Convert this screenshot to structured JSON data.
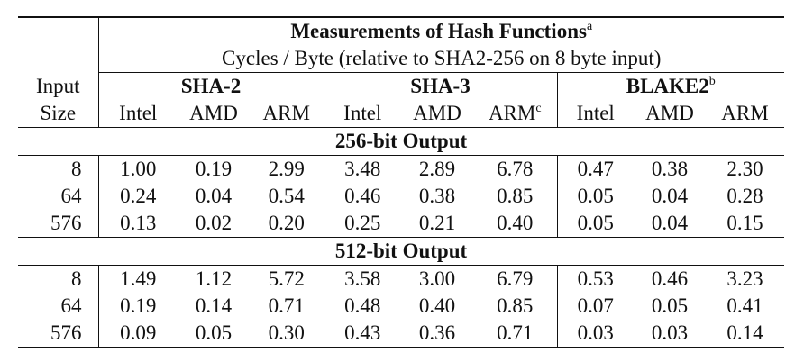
{
  "title": "Measurements of Hash Functions",
  "title_note": "a",
  "subtitle": "Cycles / Byte (relative to SHA2-256 on 8 byte input)",
  "row_header": [
    "Input",
    "Size"
  ],
  "groups": [
    {
      "name": "SHA-2",
      "note": "",
      "cols": [
        {
          "label": "Intel",
          "note": ""
        },
        {
          "label": "AMD",
          "note": ""
        },
        {
          "label": "ARM",
          "note": ""
        }
      ]
    },
    {
      "name": "SHA-3",
      "note": "",
      "cols": [
        {
          "label": "Intel",
          "note": ""
        },
        {
          "label": "AMD",
          "note": ""
        },
        {
          "label": "ARM",
          "note": "c"
        }
      ]
    },
    {
      "name": "BLAKE2",
      "note": "b",
      "cols": [
        {
          "label": "Intel",
          "note": ""
        },
        {
          "label": "AMD",
          "note": ""
        },
        {
          "label": "ARM",
          "note": ""
        }
      ]
    }
  ],
  "sections": [
    {
      "title": "256-bit Output",
      "rows": [
        {
          "size": "8",
          "values": [
            "1.00",
            "0.19",
            "2.99",
            "3.48",
            "2.89",
            "6.78",
            "0.47",
            "0.38",
            "2.30"
          ]
        },
        {
          "size": "64",
          "values": [
            "0.24",
            "0.04",
            "0.54",
            "0.46",
            "0.38",
            "0.85",
            "0.05",
            "0.04",
            "0.28"
          ]
        },
        {
          "size": "576",
          "values": [
            "0.13",
            "0.02",
            "0.20",
            "0.25",
            "0.21",
            "0.40",
            "0.05",
            "0.04",
            "0.15"
          ]
        }
      ]
    },
    {
      "title": "512-bit Output",
      "rows": [
        {
          "size": "8",
          "values": [
            "1.49",
            "1.12",
            "5.72",
            "3.58",
            "3.00",
            "6.79",
            "0.53",
            "0.46",
            "3.23"
          ]
        },
        {
          "size": "64",
          "values": [
            "0.19",
            "0.14",
            "0.71",
            "0.48",
            "0.40",
            "0.85",
            "0.07",
            "0.05",
            "0.41"
          ]
        },
        {
          "size": "576",
          "values": [
            "0.09",
            "0.05",
            "0.30",
            "0.43",
            "0.36",
            "0.71",
            "0.03",
            "0.03",
            "0.14"
          ]
        }
      ]
    }
  ]
}
